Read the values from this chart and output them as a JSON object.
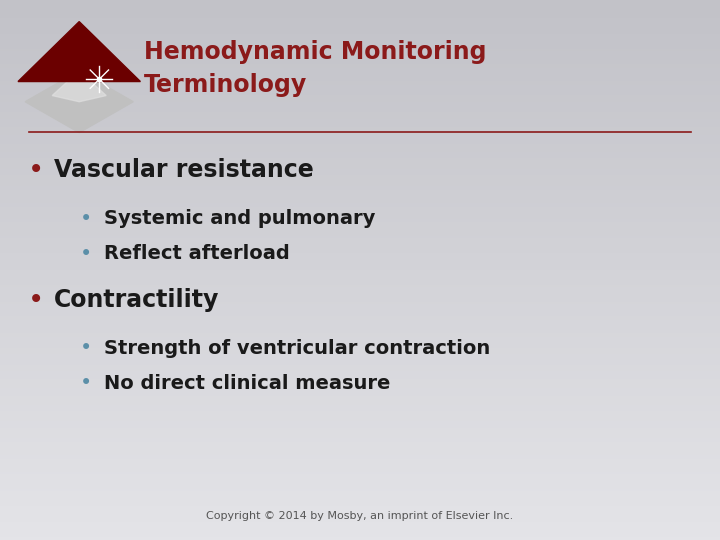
{
  "title_line1": "Hemodynamic Monitoring",
  "title_line2": "Terminology",
  "title_color": "#8B1A1A",
  "separator_color": "#8B1A1A",
  "bullet1_text": "Vascular resistance",
  "bullet1_color": "#8B1A1A",
  "sub_bullet_color": "#5B8FA8",
  "sub1a_text": "Systemic and pulmonary",
  "sub1b_text": "Reflect afterload",
  "bullet2_text": "Contractility",
  "bullet2_color": "#8B1A1A",
  "sub2a_text": "Strength of ventricular contraction",
  "sub2b_text": "No direct clinical measure",
  "copyright_text": "Copyright © 2014 by Mosby, an imprint of Elsevier Inc.",
  "text_color": "#1a1a1a",
  "title_fontsize": 17,
  "bullet_fontsize": 17,
  "sub_bullet_fontsize": 14,
  "copyright_fontsize": 8
}
